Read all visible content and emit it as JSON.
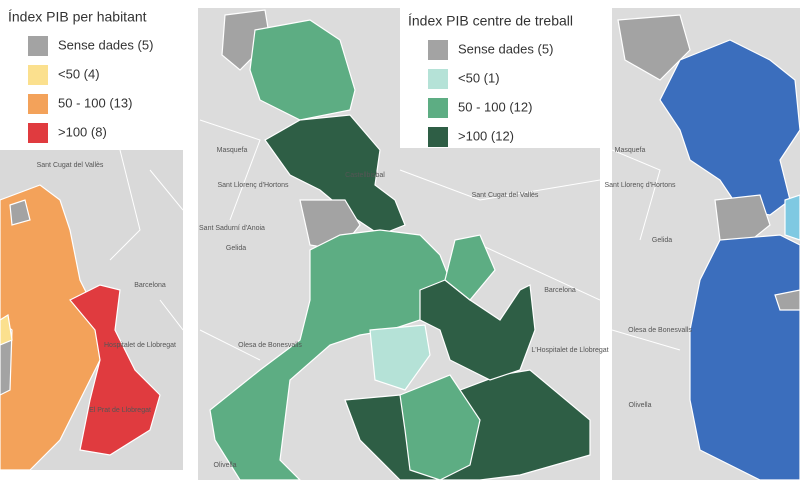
{
  "panels": [
    {
      "legend": {
        "title": "Índex PIB per habitant",
        "items": [
          {
            "label": "Sense dades (5)",
            "color": "#a3a3a3"
          },
          {
            "label": "<50 (4)",
            "color": "#fbe08e"
          },
          {
            "label": "50 - 100 (13)",
            "color": "#f3a25a"
          },
          {
            "label": ">100 (8)",
            "color": "#e03b3f"
          }
        ]
      },
      "places": [
        "Sant Cugat del Vallès",
        "Barcelona",
        "Hospitalet de Llobregat",
        "El Prat de Llobregat"
      ]
    },
    {
      "legend": {
        "title": "Índex PIB centre de treball",
        "items": [
          {
            "label": "Sense dades (5)",
            "color": "#a3a3a3"
          },
          {
            "label": "<50 (1)",
            "color": "#b5e2d7"
          },
          {
            "label": "50 - 100 (12)",
            "color": "#5dad83"
          },
          {
            "label": ">100 (12)",
            "color": "#2e5e45"
          }
        ]
      },
      "places": [
        "Masquefa",
        "Sant Llorenç d'Hortons",
        "Castellbisbal",
        "Sant Cugat del Vallès",
        "Sant Sadurní d'Anoia",
        "Gelida",
        "Barcelona",
        "L'Hospitalet de Llobregat",
        "Olesa de Bonesvalls",
        "Olivella"
      ]
    },
    {
      "places": [
        "Masquefa",
        "Sant Llorenç d'Hortons",
        "Gelida",
        "Olesa de Bonesvalls",
        "Olivella"
      ]
    }
  ]
}
